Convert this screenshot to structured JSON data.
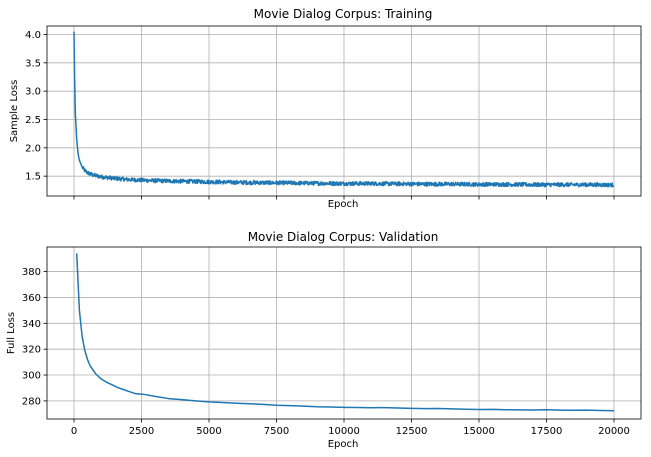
{
  "chart_data": [
    {
      "type": "line",
      "title": "Movie Dialog Corpus: Training",
      "xlabel": "Epoch",
      "ylabel": "Sample Loss",
      "xlim": [
        -1000,
        21000
      ],
      "ylim": [
        1.15,
        4.15
      ],
      "grid": true,
      "x_tick_labels_visible": false,
      "xticks": [
        0,
        2500,
        5000,
        7500,
        10000,
        12500,
        15000,
        17500,
        20000
      ],
      "yticks": [
        1.5,
        2.0,
        2.5,
        3.0,
        3.5,
        4.0
      ],
      "ytick_labels": [
        "1.5",
        "2.0",
        "2.5",
        "3.0",
        "3.5",
        "4.0"
      ],
      "color": "#1f77b4",
      "noise_amplitude": 0.035,
      "series": [
        {
          "x": [
            0,
            20,
            50,
            100,
            150,
            200,
            300,
            400,
            500,
            700,
            1000,
            1500,
            2000,
            2500,
            3000,
            4000,
            5000,
            6000,
            7000,
            8000,
            9000,
            10000,
            11000,
            12000,
            13000,
            14000,
            15000,
            16000,
            17000,
            18000,
            19000,
            20000
          ],
          "y": [
            4.05,
            3.3,
            2.6,
            2.15,
            1.9,
            1.78,
            1.66,
            1.6,
            1.56,
            1.52,
            1.49,
            1.46,
            1.44,
            1.43,
            1.42,
            1.41,
            1.4,
            1.39,
            1.385,
            1.38,
            1.375,
            1.37,
            1.37,
            1.365,
            1.36,
            1.36,
            1.355,
            1.355,
            1.35,
            1.35,
            1.35,
            1.345
          ]
        }
      ]
    },
    {
      "type": "line",
      "title": "Movie Dialog Corpus: Validation",
      "xlabel": "Epoch",
      "ylabel": "Full Loss",
      "xlim": [
        -1000,
        21000
      ],
      "ylim": [
        266,
        399
      ],
      "grid": true,
      "x_tick_labels_visible": true,
      "xticks": [
        0,
        2500,
        5000,
        7500,
        10000,
        12500,
        15000,
        17500,
        20000
      ],
      "xtick_labels": [
        "0",
        "2500",
        "5000",
        "7500",
        "10000",
        "12500",
        "15000",
        "17500",
        "20000"
      ],
      "yticks": [
        280,
        300,
        320,
        340,
        360,
        380
      ],
      "ytick_labels": [
        "280",
        "300",
        "320",
        "340",
        "360",
        "380"
      ],
      "color": "#1f77b4",
      "series": [
        {
          "x": [
            100,
            200,
            300,
            400,
            500,
            600,
            700,
            800,
            900,
            1000,
            1200,
            1400,
            1600,
            1800,
            2000,
            2300,
            2600,
            3000,
            3500,
            4000,
            4500,
            5000,
            5500,
            6000,
            6500,
            7000,
            7500,
            8000,
            8500,
            9000,
            9500,
            10000,
            10500,
            11000,
            11500,
            12000,
            12500,
            13000,
            13500,
            14000,
            14500,
            15000,
            15500,
            16000,
            16500,
            17000,
            17500,
            18000,
            18500,
            19000,
            19500,
            20000
          ],
          "y": [
            394,
            350,
            330,
            319,
            312,
            307,
            304,
            301,
            299,
            297,
            294.5,
            292.5,
            290.5,
            289,
            287.5,
            285.5,
            285,
            283.5,
            281.8,
            281,
            280,
            279.2,
            278.8,
            278.2,
            277.8,
            277.3,
            276.6,
            276.3,
            276,
            275.5,
            275.3,
            275,
            274.9,
            274.7,
            274.8,
            274.5,
            274.2,
            274,
            274.1,
            273.8,
            273.5,
            273.3,
            273.4,
            273.2,
            273.1,
            273,
            273.2,
            272.9,
            272.8,
            272.9,
            272.6,
            272.4
          ]
        }
      ]
    }
  ]
}
